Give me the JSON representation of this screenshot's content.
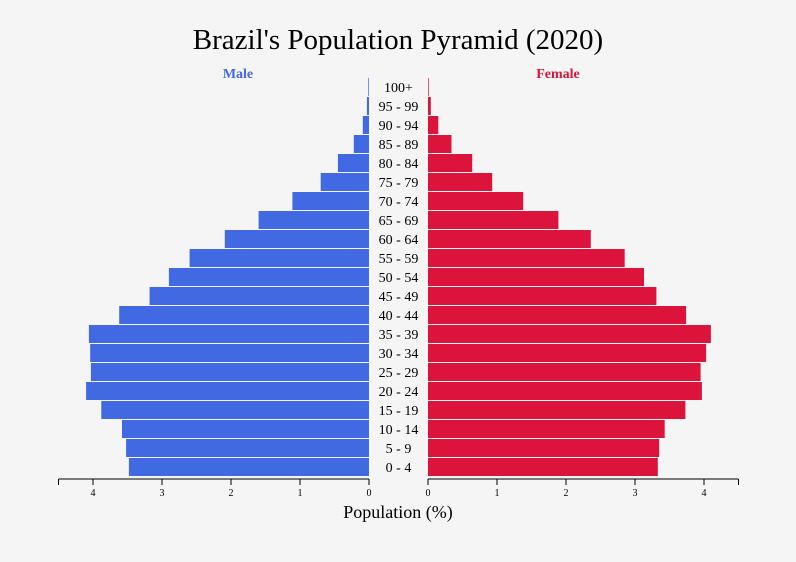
{
  "chart_data": {
    "type": "bar",
    "orientation": "horizontal",
    "layout": "population-pyramid",
    "title": "Brazil's Population Pyramid (2020)",
    "xlabel": "Population (%)",
    "categories": [
      "0 - 4",
      "5 - 9",
      "10 - 14",
      "15 - 19",
      "20 - 24",
      "25 - 29",
      "30 - 34",
      "35 - 39",
      "40 - 44",
      "45 - 49",
      "50 - 54",
      "55 - 59",
      "60 - 64",
      "65 - 69",
      "70 - 74",
      "75 - 79",
      "80 - 84",
      "85 - 89",
      "90 - 94",
      "95 - 99",
      "100+"
    ],
    "series": [
      {
        "name": "Male",
        "color": "#4169e1",
        "values": [
          3.48,
          3.52,
          3.58,
          3.88,
          4.1,
          4.03,
          4.04,
          4.06,
          3.62,
          3.18,
          2.9,
          2.6,
          2.09,
          1.6,
          1.11,
          0.7,
          0.45,
          0.22,
          0.09,
          0.03,
          0.01
        ]
      },
      {
        "name": "Female",
        "color": "#dc143c",
        "values": [
          3.33,
          3.35,
          3.43,
          3.73,
          3.97,
          3.95,
          4.03,
          4.1,
          3.74,
          3.31,
          3.13,
          2.85,
          2.36,
          1.89,
          1.38,
          0.93,
          0.64,
          0.34,
          0.15,
          0.04,
          0.01
        ]
      }
    ],
    "xlim": [
      0,
      4.5
    ],
    "ticks": [
      0,
      1,
      2,
      3,
      4
    ],
    "legend_placement": "top, above each side",
    "grid": false,
    "background_color": "#f5f5f5"
  }
}
